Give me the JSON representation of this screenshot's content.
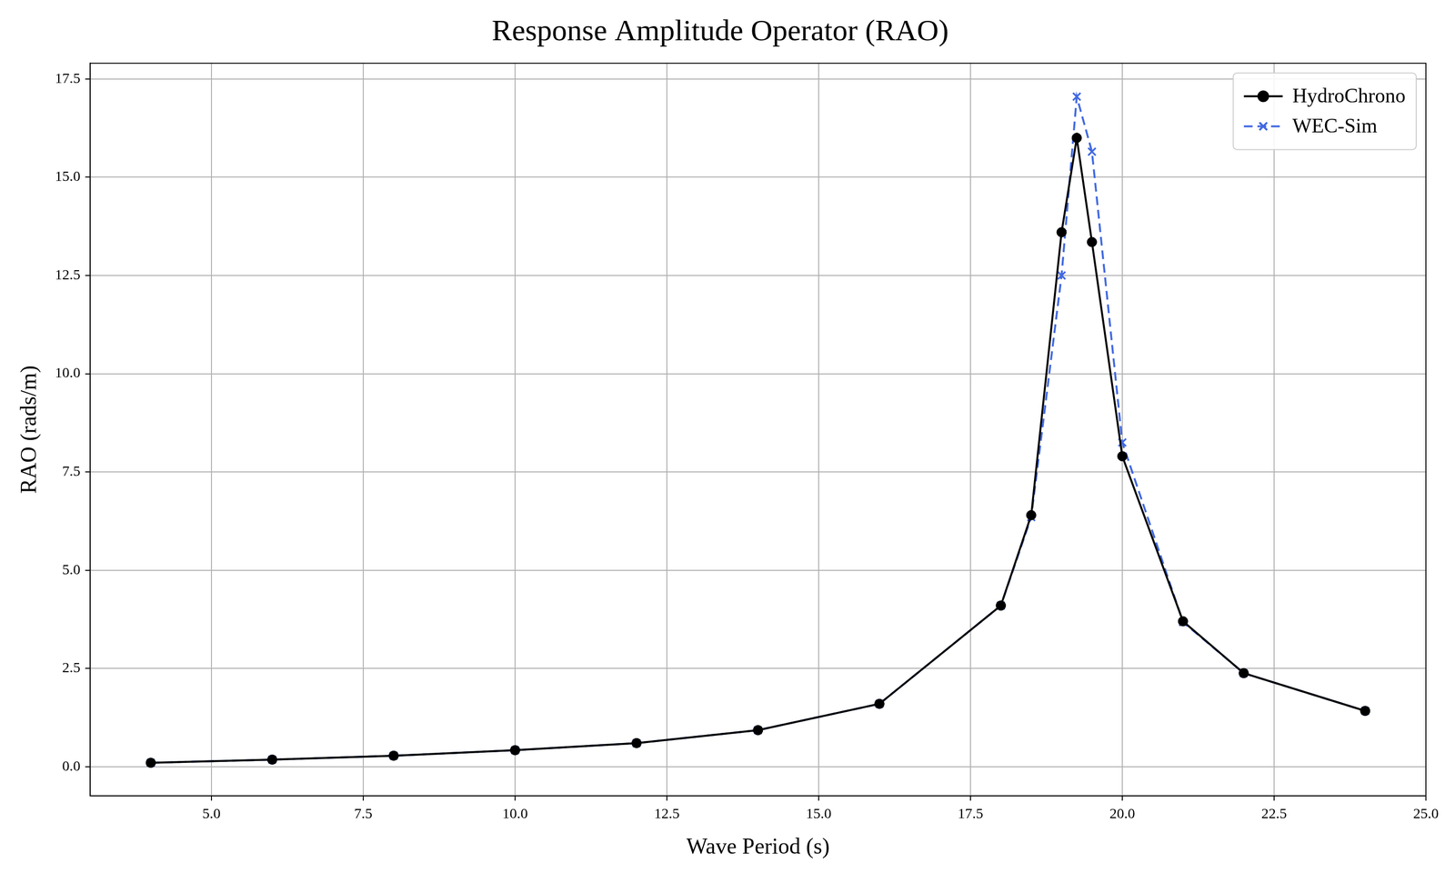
{
  "chart_data": {
    "type": "line",
    "title": "Response Amplitude Operator (RAO)",
    "x_label": "Wave Period (s)",
    "y_label": "RAO (rads/m)",
    "x": [
      4,
      6,
      8,
      10,
      12,
      14,
      16,
      18,
      18.5,
      19,
      19.25,
      19.5,
      20,
      21,
      22,
      24
    ],
    "series": [
      {
        "name": "HydroChrono",
        "color": "#000000",
        "marker": "circle",
        "line_style": "solid",
        "values": [
          0.1,
          0.18,
          0.28,
          0.42,
          0.6,
          0.93,
          1.6,
          4.1,
          6.4,
          13.6,
          16.0,
          13.35,
          7.9,
          3.7,
          2.38,
          1.42
        ]
      },
      {
        "name": "WEC-Sim",
        "color": "#4169e1",
        "marker": "x",
        "line_style": "dashed",
        "values": [
          0.1,
          0.18,
          0.28,
          0.42,
          0.6,
          0.93,
          1.6,
          4.1,
          6.35,
          12.5,
          17.05,
          15.65,
          8.25,
          3.68,
          2.38,
          1.42
        ]
      }
    ],
    "xlim": [
      3,
      25
    ],
    "xticks": [
      {
        "value": 5,
        "label": "5.0"
      },
      7.5,
      {
        "value": 10,
        "label": "10.0"
      },
      12.5,
      {
        "value": 15,
        "label": "15.0"
      },
      17.5,
      {
        "value": 20,
        "label": "20.0"
      },
      22.5,
      {
        "value": 25,
        "label": "25.0"
      }
    ],
    "ylim": [
      -0.74,
      17.9
    ],
    "yticks": [
      {
        "value": 0,
        "label": "0.0"
      },
      2.5,
      {
        "value": 5,
        "label": "5.0"
      },
      7.5,
      {
        "value": 10,
        "label": "10.0"
      },
      12.5,
      {
        "value": 15,
        "label": "15.0"
      },
      17.5
    ],
    "grid": true,
    "legend": "upper right"
  }
}
